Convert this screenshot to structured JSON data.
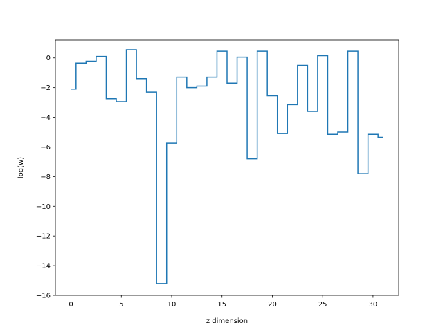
{
  "chart_data": {
    "type": "line",
    "drawstyle": "steps-mid",
    "xlabel": "z dimension",
    "ylabel": "log(w)",
    "xlim": [
      -1.55,
      32.55
    ],
    "ylim": [
      -16,
      1.2
    ],
    "xticks": [
      0,
      5,
      10,
      15,
      20,
      25,
      30
    ],
    "yticks": [
      -16,
      -14,
      -12,
      -10,
      -8,
      -6,
      -4,
      -2,
      0
    ],
    "ytick_labels": [
      "−16",
      "−14",
      "−12",
      "−10",
      "−8",
      "−6",
      "−4",
      "−2",
      "0"
    ],
    "grid": false,
    "legend": null,
    "color": "#1f77b4",
    "series": [
      {
        "x": [
          0,
          1,
          2,
          3,
          4,
          5,
          6,
          7,
          8,
          9,
          10,
          11,
          12,
          13,
          14,
          15,
          16,
          17,
          18,
          19,
          20,
          21,
          22,
          23,
          24,
          25,
          26,
          27,
          28,
          29,
          30,
          31
        ],
        "y": [
          -2.1,
          -0.35,
          -0.22,
          0.1,
          -2.75,
          -2.95,
          0.55,
          -1.4,
          -2.3,
          -15.2,
          -5.75,
          -1.3,
          -2.0,
          -1.9,
          -1.3,
          0.45,
          -1.7,
          0.05,
          -6.8,
          0.45,
          -2.55,
          -5.1,
          -3.15,
          -0.5,
          -3.6,
          0.15,
          -5.15,
          -5.0,
          0.45,
          -7.8,
          -5.15,
          -5.35
        ]
      }
    ]
  }
}
